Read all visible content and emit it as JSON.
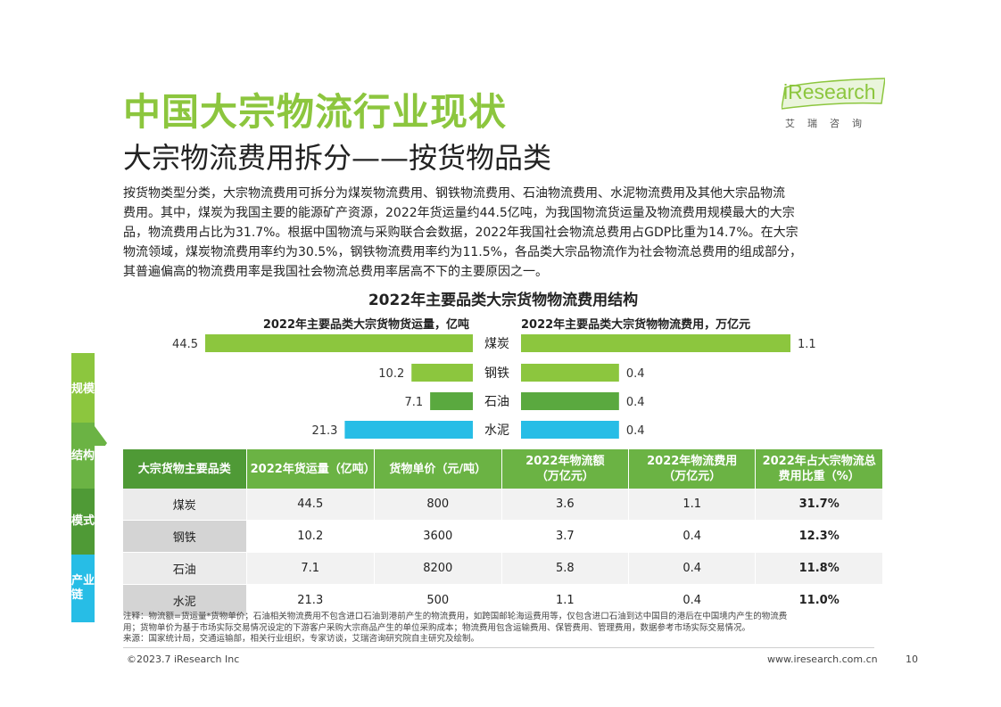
{
  "header": {
    "title": "中国大宗物流行业现状",
    "subtitle": "大宗物流费用拆分——按货物品类",
    "logo_text": "iResearch",
    "logo_cn": "艾瑞咨询"
  },
  "intro_lines": [
    "按货物类型分类，大宗物流费用可拆分为煤炭物流费用、钢铁物流费用、石油物流费用、水泥物流费用及其他大宗品物流",
    "费用。其中，煤炭为我国主要的能源矿产资源，2022年货运量约44.5亿吨，为我国物流货运量及物流费用规模最大的大宗",
    "品，物流费用占比为31.7%。根据中国物流与采购联合会数据，2022年我国社会物流总费用占GDP比重为14.7%。在大宗",
    "物流领域，煤炭物流费用率约为30.5%，钢铁物流费用率约为11.5%，各品类大宗品物流作为社会物流总费用的组成部分，",
    "其普遍偏高的物流费用率是我国社会物流总费用率居高不下的主要原因之一。"
  ],
  "side_nav": [
    {
      "label": "规模",
      "color": "#8cc63e"
    },
    {
      "label": "结构",
      "color": "#6bb344"
    },
    {
      "label": "模式",
      "color": "#4f9a36"
    },
    {
      "label": "产业链",
      "color": "#27bde6"
    }
  ],
  "chart_data": {
    "type": "bar",
    "title": "2022年主要品类大宗货物物流费用结构",
    "categories": [
      "煤炭",
      "钢铁",
      "石油",
      "水泥"
    ],
    "colors": [
      "#8cc63e",
      "#8cc63e",
      "#5aa93f",
      "#27bde6"
    ],
    "series": [
      {
        "name": "2022年主要品类大宗货物货运量，亿吨",
        "values": [
          44.5,
          10.2,
          7.1,
          21.3
        ],
        "direction": "left",
        "max": 44.5
      },
      {
        "name": "2022年主要品类大宗货物物流费用，万亿元",
        "values": [
          1.1,
          0.4,
          0.4,
          0.4
        ],
        "direction": "right",
        "max": 1.1
      }
    ]
  },
  "table": {
    "headers": [
      "大宗货物主要品类",
      "2022年货运量（亿吨）",
      "货物单价（元/吨）",
      "2022年物流额（万亿元）",
      "2022年物流费用（万亿元）",
      "2022年占大宗物流总费用比重（%）"
    ],
    "header_lines": [
      [
        "大宗货物主要品类"
      ],
      [
        "2022年货运量（亿吨）"
      ],
      [
        "货物单价（元/吨）"
      ],
      [
        "2022年物流额",
        "（万亿元）"
      ],
      [
        "2022年物流费用",
        "（万亿元）"
      ],
      [
        "2022年占大宗物流总",
        "费用比重（%）"
      ]
    ],
    "rows": [
      [
        "煤炭",
        "44.5",
        "800",
        "3.6",
        "1.1",
        "31.7%"
      ],
      [
        "钢铁",
        "10.2",
        "3600",
        "3.7",
        "0.4",
        "12.3%"
      ],
      [
        "石油",
        "7.1",
        "8200",
        "5.8",
        "0.4",
        "11.8%"
      ],
      [
        "水泥",
        "21.3",
        "500",
        "1.1",
        "0.4",
        "11.0%"
      ]
    ]
  },
  "notes": [
    "注释：物流额=货运量*货物单价；石油相关物流费用不包含进口石油到港前产生的物流费用，如跨国邮轮海运费用等，仅包含进口石油到达中国目的港后在中国境内产生的物流费",
    "用；货物单价为基于市场实际交易情况设定的下游客户采购大宗商品产生的单位采购成本；物流费用包含运输费用、保管费用、管理费用，数据参考市场实际交易情况。",
    "来源：国家统计局，交通运输部，相关行业组织，专家访谈，艾瑞咨询研究院自主研究及绘制。"
  ],
  "footer": {
    "copyright": "©2023.7 iResearch Inc",
    "website": "www.iresearch.com.cn",
    "page": "10"
  }
}
